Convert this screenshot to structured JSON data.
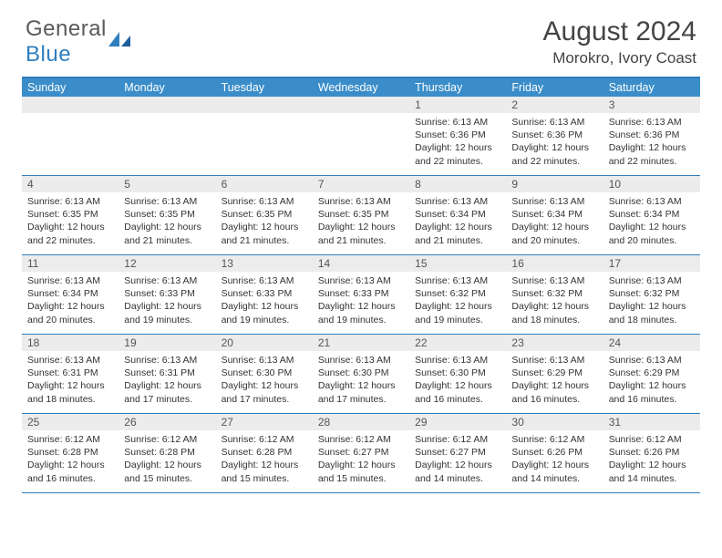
{
  "brand": {
    "general": "General",
    "blue": "Blue"
  },
  "title": "August 2024",
  "location": "Morokro, Ivory Coast",
  "colors": {
    "header_bg": "#3a8dc9",
    "border": "#2f7fbf",
    "daynum_bg": "#ececec",
    "text": "#333333",
    "title_text": "#444444"
  },
  "day_names": [
    "Sunday",
    "Monday",
    "Tuesday",
    "Wednesday",
    "Thursday",
    "Friday",
    "Saturday"
  ],
  "weeks": [
    [
      null,
      null,
      null,
      null,
      {
        "n": "1",
        "sr": "Sunrise: 6:13 AM",
        "ss": "Sunset: 6:36 PM",
        "dl": "Daylight: 12 hours and 22 minutes."
      },
      {
        "n": "2",
        "sr": "Sunrise: 6:13 AM",
        "ss": "Sunset: 6:36 PM",
        "dl": "Daylight: 12 hours and 22 minutes."
      },
      {
        "n": "3",
        "sr": "Sunrise: 6:13 AM",
        "ss": "Sunset: 6:36 PM",
        "dl": "Daylight: 12 hours and 22 minutes."
      }
    ],
    [
      {
        "n": "4",
        "sr": "Sunrise: 6:13 AM",
        "ss": "Sunset: 6:35 PM",
        "dl": "Daylight: 12 hours and 22 minutes."
      },
      {
        "n": "5",
        "sr": "Sunrise: 6:13 AM",
        "ss": "Sunset: 6:35 PM",
        "dl": "Daylight: 12 hours and 21 minutes."
      },
      {
        "n": "6",
        "sr": "Sunrise: 6:13 AM",
        "ss": "Sunset: 6:35 PM",
        "dl": "Daylight: 12 hours and 21 minutes."
      },
      {
        "n": "7",
        "sr": "Sunrise: 6:13 AM",
        "ss": "Sunset: 6:35 PM",
        "dl": "Daylight: 12 hours and 21 minutes."
      },
      {
        "n": "8",
        "sr": "Sunrise: 6:13 AM",
        "ss": "Sunset: 6:34 PM",
        "dl": "Daylight: 12 hours and 21 minutes."
      },
      {
        "n": "9",
        "sr": "Sunrise: 6:13 AM",
        "ss": "Sunset: 6:34 PM",
        "dl": "Daylight: 12 hours and 20 minutes."
      },
      {
        "n": "10",
        "sr": "Sunrise: 6:13 AM",
        "ss": "Sunset: 6:34 PM",
        "dl": "Daylight: 12 hours and 20 minutes."
      }
    ],
    [
      {
        "n": "11",
        "sr": "Sunrise: 6:13 AM",
        "ss": "Sunset: 6:34 PM",
        "dl": "Daylight: 12 hours and 20 minutes."
      },
      {
        "n": "12",
        "sr": "Sunrise: 6:13 AM",
        "ss": "Sunset: 6:33 PM",
        "dl": "Daylight: 12 hours and 19 minutes."
      },
      {
        "n": "13",
        "sr": "Sunrise: 6:13 AM",
        "ss": "Sunset: 6:33 PM",
        "dl": "Daylight: 12 hours and 19 minutes."
      },
      {
        "n": "14",
        "sr": "Sunrise: 6:13 AM",
        "ss": "Sunset: 6:33 PM",
        "dl": "Daylight: 12 hours and 19 minutes."
      },
      {
        "n": "15",
        "sr": "Sunrise: 6:13 AM",
        "ss": "Sunset: 6:32 PM",
        "dl": "Daylight: 12 hours and 19 minutes."
      },
      {
        "n": "16",
        "sr": "Sunrise: 6:13 AM",
        "ss": "Sunset: 6:32 PM",
        "dl": "Daylight: 12 hours and 18 minutes."
      },
      {
        "n": "17",
        "sr": "Sunrise: 6:13 AM",
        "ss": "Sunset: 6:32 PM",
        "dl": "Daylight: 12 hours and 18 minutes."
      }
    ],
    [
      {
        "n": "18",
        "sr": "Sunrise: 6:13 AM",
        "ss": "Sunset: 6:31 PM",
        "dl": "Daylight: 12 hours and 18 minutes."
      },
      {
        "n": "19",
        "sr": "Sunrise: 6:13 AM",
        "ss": "Sunset: 6:31 PM",
        "dl": "Daylight: 12 hours and 17 minutes."
      },
      {
        "n": "20",
        "sr": "Sunrise: 6:13 AM",
        "ss": "Sunset: 6:30 PM",
        "dl": "Daylight: 12 hours and 17 minutes."
      },
      {
        "n": "21",
        "sr": "Sunrise: 6:13 AM",
        "ss": "Sunset: 6:30 PM",
        "dl": "Daylight: 12 hours and 17 minutes."
      },
      {
        "n": "22",
        "sr": "Sunrise: 6:13 AM",
        "ss": "Sunset: 6:30 PM",
        "dl": "Daylight: 12 hours and 16 minutes."
      },
      {
        "n": "23",
        "sr": "Sunrise: 6:13 AM",
        "ss": "Sunset: 6:29 PM",
        "dl": "Daylight: 12 hours and 16 minutes."
      },
      {
        "n": "24",
        "sr": "Sunrise: 6:13 AM",
        "ss": "Sunset: 6:29 PM",
        "dl": "Daylight: 12 hours and 16 minutes."
      }
    ],
    [
      {
        "n": "25",
        "sr": "Sunrise: 6:12 AM",
        "ss": "Sunset: 6:28 PM",
        "dl": "Daylight: 12 hours and 16 minutes."
      },
      {
        "n": "26",
        "sr": "Sunrise: 6:12 AM",
        "ss": "Sunset: 6:28 PM",
        "dl": "Daylight: 12 hours and 15 minutes."
      },
      {
        "n": "27",
        "sr": "Sunrise: 6:12 AM",
        "ss": "Sunset: 6:28 PM",
        "dl": "Daylight: 12 hours and 15 minutes."
      },
      {
        "n": "28",
        "sr": "Sunrise: 6:12 AM",
        "ss": "Sunset: 6:27 PM",
        "dl": "Daylight: 12 hours and 15 minutes."
      },
      {
        "n": "29",
        "sr": "Sunrise: 6:12 AM",
        "ss": "Sunset: 6:27 PM",
        "dl": "Daylight: 12 hours and 14 minutes."
      },
      {
        "n": "30",
        "sr": "Sunrise: 6:12 AM",
        "ss": "Sunset: 6:26 PM",
        "dl": "Daylight: 12 hours and 14 minutes."
      },
      {
        "n": "31",
        "sr": "Sunrise: 6:12 AM",
        "ss": "Sunset: 6:26 PM",
        "dl": "Daylight: 12 hours and 14 minutes."
      }
    ]
  ]
}
